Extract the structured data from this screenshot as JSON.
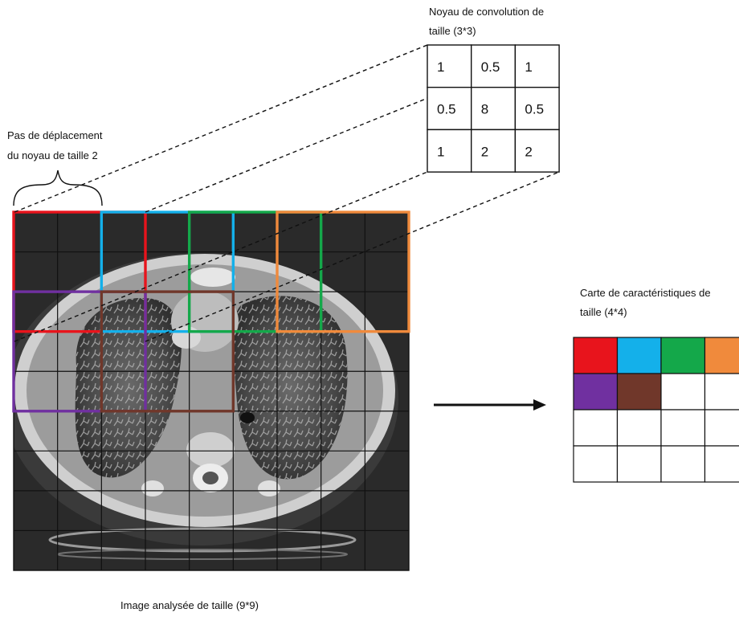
{
  "labels": {
    "kernel_title_line1": "Noyau de convolution de",
    "kernel_title_line2": "taille (3*3)",
    "stride_line1": "Pas de déplacement",
    "stride_line2": "du noyau de taille 2",
    "feature_title_line1": "Carte de caractéristiques de",
    "feature_title_line2": "taille (4*4)",
    "image_caption": "Image analysée de taille (9*9)"
  },
  "kernel": {
    "rows": [
      [
        "1",
        "0.5",
        "1"
      ],
      [
        "0.5",
        "8",
        "0.5"
      ],
      [
        "1",
        "2",
        "2"
      ]
    ]
  },
  "image_grid": {
    "rows": 9,
    "cols": 9
  },
  "colors": {
    "red": "#e8141c",
    "blue": "#14b0ea",
    "green": "#14a84a",
    "orange": "#f08a3c",
    "purple": "#7030a0",
    "brown": "#70372a",
    "grid_line": "#111111",
    "scan_background": "#2b2b2b"
  },
  "windows": [
    {
      "name": "window-red",
      "color": "red",
      "row": 0,
      "col": 0
    },
    {
      "name": "window-blue",
      "color": "blue",
      "row": 0,
      "col": 2
    },
    {
      "name": "window-green",
      "color": "green",
      "row": 0,
      "col": 4
    },
    {
      "name": "window-orange",
      "color": "orange",
      "row": 0,
      "col": 6
    },
    {
      "name": "window-purple",
      "color": "purple",
      "row": 2,
      "col": 0
    },
    {
      "name": "window-brown",
      "color": "brown",
      "row": 2,
      "col": 2
    }
  ],
  "feature_map": {
    "rows": 4,
    "cols": 4,
    "cells": [
      [
        "red",
        "blue",
        "green",
        "orange"
      ],
      [
        "purple",
        "brown",
        "",
        ""
      ],
      [
        "",
        "",
        "",
        ""
      ],
      [
        "",
        "",
        "",
        ""
      ]
    ]
  }
}
